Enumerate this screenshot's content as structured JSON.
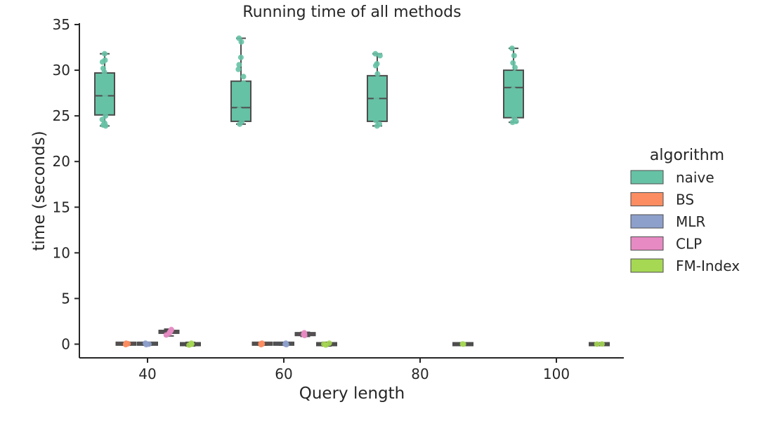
{
  "chart_data": {
    "type": "box",
    "title": "Running time of all methods",
    "xlabel": "Query length",
    "ylabel": "time (seconds)",
    "ylim": [
      -1.5,
      35
    ],
    "categories": [
      "40",
      "60",
      "80",
      "100"
    ],
    "yticks": [
      "0",
      "5",
      "10",
      "15",
      "20",
      "25",
      "30",
      "35"
    ],
    "legend": {
      "title": "algorithm",
      "position": "right",
      "entries": [
        "naive",
        "BS",
        "MLR",
        "CLP",
        "FM-Index"
      ]
    },
    "series": [
      {
        "name": "naive",
        "color": "#66c2a5",
        "boxes": [
          {
            "category": "40",
            "min": 23.9,
            "q1": 25.1,
            "median": 27.2,
            "q3": 29.7,
            "max": 31.8
          },
          {
            "category": "60",
            "min": 24.1,
            "q1": 24.4,
            "median": 25.9,
            "q3": 28.8,
            "max": 33.5
          },
          {
            "category": "80",
            "min": 23.9,
            "q1": 24.4,
            "median": 26.9,
            "q3": 29.4,
            "max": 31.8
          },
          {
            "category": "100",
            "min": 24.3,
            "q1": 24.8,
            "median": 28.1,
            "q3": 30.0,
            "max": 32.4
          }
        ],
        "points": [
          {
            "category": "40",
            "y": [
              31.8,
              31.1,
              30.9,
              30.2,
              29.8,
              29.0,
              28.4,
              27.8,
              27.2,
              26.6,
              26.0,
              25.5,
              25.0,
              24.6,
              24.2,
              24.0,
              23.9
            ]
          },
          {
            "category": "60",
            "y": [
              33.5,
              33.1,
              31.4,
              30.6,
              30.1,
              29.3,
              28.6,
              27.8,
              27.0,
              26.3,
              25.7,
              25.2,
              24.8,
              24.4,
              24.1
            ]
          },
          {
            "category": "80",
            "y": [
              31.8,
              31.6,
              30.7,
              30.5,
              29.6,
              29.0,
              28.2,
              27.5,
              26.9,
              26.2,
              25.6,
              25.0,
              24.5,
              24.1,
              23.9
            ]
          },
          {
            "category": "100",
            "y": [
              32.4,
              31.6,
              30.8,
              30.3,
              29.7,
              29.1,
              28.5,
              27.9,
              27.3,
              26.6,
              26.0,
              25.3,
              24.8,
              24.4,
              24.3
            ]
          }
        ]
      },
      {
        "name": "BS",
        "color": "#fc8d62",
        "boxes": [
          {
            "category": "40",
            "min": -0.1,
            "q1": 0.0,
            "median": 0.05,
            "q3": 0.1,
            "max": 0.15
          },
          {
            "category": "60",
            "min": -0.1,
            "q1": 0.0,
            "median": 0.05,
            "q3": 0.1,
            "max": 0.15
          }
        ],
        "points": [
          {
            "category": "40",
            "y": [
              0.0,
              0.1,
              -0.05,
              0.05
            ]
          },
          {
            "category": "60",
            "y": [
              0.0,
              0.1,
              -0.05,
              0.05
            ]
          }
        ]
      },
      {
        "name": "MLR",
        "color": "#8da0cb",
        "boxes": [
          {
            "category": "40",
            "min": -0.1,
            "q1": 0.0,
            "median": 0.05,
            "q3": 0.1,
            "max": 0.15
          },
          {
            "category": "60",
            "min": -0.1,
            "q1": 0.0,
            "median": 0.05,
            "q3": 0.1,
            "max": 0.15
          }
        ],
        "points": [
          {
            "category": "40",
            "y": [
              0.0,
              0.1,
              -0.05
            ]
          },
          {
            "category": "60",
            "y": [
              0.0,
              0.1,
              -0.05
            ]
          }
        ]
      },
      {
        "name": "CLP",
        "color": "#e78ac3",
        "boxes": [
          {
            "category": "40",
            "min": 0.9,
            "q1": 1.2,
            "median": 1.35,
            "q3": 1.5,
            "max": 1.65
          },
          {
            "category": "60",
            "min": 0.85,
            "q1": 1.0,
            "median": 1.1,
            "q3": 1.2,
            "max": 1.3
          }
        ],
        "points": [
          {
            "category": "40",
            "y": [
              1.6,
              1.5,
              1.4,
              1.3,
              1.2,
              1.0
            ]
          },
          {
            "category": "60",
            "y": [
              1.25,
              1.15,
              1.05,
              0.95
            ]
          }
        ]
      },
      {
        "name": "FM-Index",
        "color": "#a6d854",
        "boxes": [
          {
            "category": "40",
            "min": -0.2,
            "q1": -0.05,
            "median": 0.0,
            "q3": 0.05,
            "max": 0.2
          },
          {
            "category": "60",
            "min": -0.2,
            "q1": -0.05,
            "median": 0.0,
            "q3": 0.05,
            "max": 0.2
          },
          {
            "category": "80",
            "min": -0.05,
            "q1": -0.02,
            "median": 0.0,
            "q3": 0.02,
            "max": 0.05
          },
          {
            "category": "100",
            "min": -0.05,
            "q1": -0.02,
            "median": 0.0,
            "q3": 0.02,
            "max": 0.05
          }
        ],
        "points": [
          {
            "category": "40",
            "y": [
              0.1,
              0.0,
              -0.1
            ]
          },
          {
            "category": "60",
            "y": [
              0.1,
              0.0,
              -0.1
            ]
          },
          {
            "category": "80",
            "y": [
              0.0,
              0.02
            ]
          },
          {
            "category": "100",
            "y": [
              0.0,
              0.02
            ]
          }
        ]
      }
    ]
  }
}
